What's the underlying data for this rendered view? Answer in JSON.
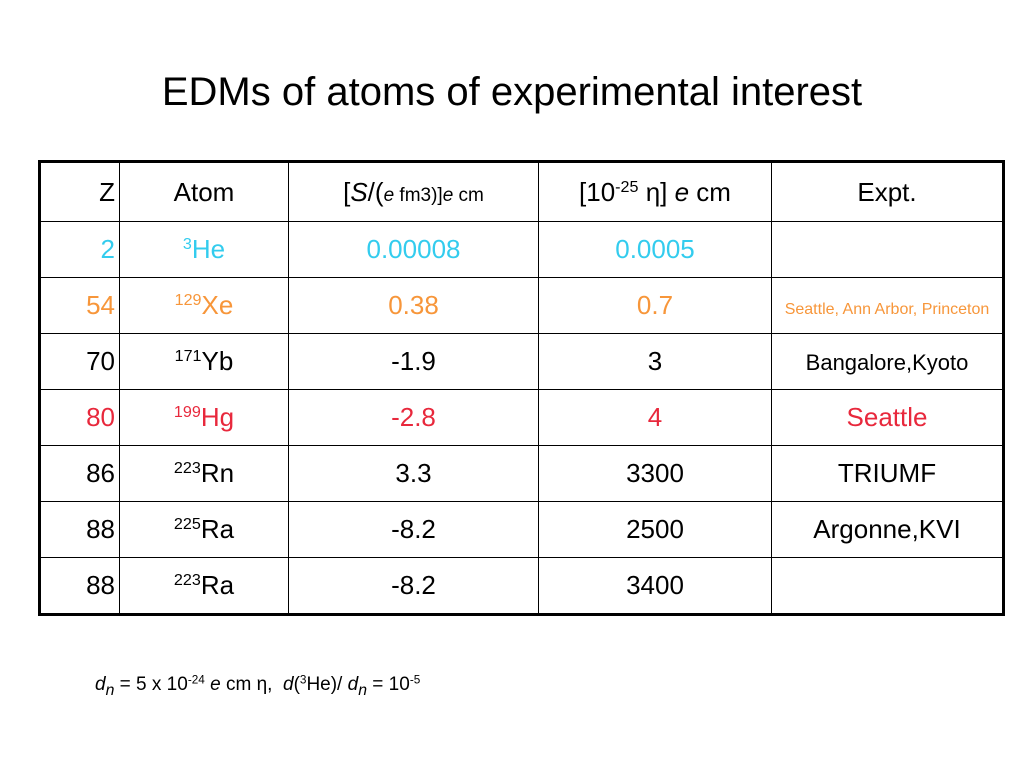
{
  "title": "EDMs of atoms of experimental interest",
  "table": {
    "header": [
      [
        "Z"
      ],
      [
        "Atom"
      ],
      [
        "[",
        "S",
        "/(",
        "e",
        " fm3)]",
        "e",
        " cm"
      ],
      [
        "[10",
        "-25",
        " η] ",
        "e",
        " cm"
      ],
      [
        "Expt."
      ]
    ],
    "rows": [
      {
        "z": "2",
        "atom": {
          "sup": "3",
          "symbol": "He"
        },
        "s": "0.00008",
        "eta": "0.0005",
        "expt": null
      },
      {
        "z": "54",
        "atom": {
          "sup": "129",
          "symbol": "Xe"
        },
        "s": "0.38",
        "eta": "0.7",
        "expt": "Seattle, Ann Arbor, Princeton"
      },
      {
        "z": "70",
        "atom": {
          "sup": "171",
          "symbol": "Yb"
        },
        "s": "-1.9",
        "eta": "3",
        "expt": "Bangalore,Kyoto"
      },
      {
        "z": "80",
        "atom": {
          "sup": "199",
          "symbol": "Hg"
        },
        "s": "-2.8",
        "eta": "4",
        "expt": "Seattle"
      },
      {
        "z": "86",
        "atom": {
          "sup": "223",
          "symbol": "Rn"
        },
        "s": "3.3",
        "eta": "3300",
        "expt": "TRIUMF"
      },
      {
        "z": "88",
        "atom": {
          "sup": "225",
          "symbol": "Ra"
        },
        "s": "-8.2",
        "eta": "2500",
        "expt": "Argonne,KVI"
      },
      {
        "z": "88",
        "atom": {
          "sup": "223",
          "symbol": "Ra"
        },
        "s": "-8.2",
        "eta": "3400",
        "expt": null
      }
    ]
  },
  "footnote": [
    "d",
    "n",
    " = 5 x 10",
    "-24",
    " e",
    " cm η,  ",
    "d",
    "(",
    "3",
    "He)/ ",
    "d",
    "n",
    " = 10",
    "-5"
  ]
}
